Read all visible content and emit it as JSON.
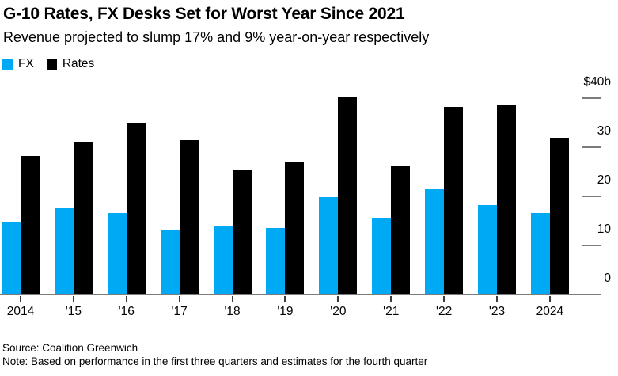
{
  "chart_data": {
    "type": "bar",
    "title": "G-10 Rates, FX Desks Set for Worst Year Since 2021",
    "subtitle": "Revenue projected to slump 17% and 9% year-on-year respectively",
    "categories": [
      "2014",
      "'15",
      "'16",
      "'17",
      "'18",
      "'19",
      "'20",
      "'21",
      "'22",
      "'23",
      "2024"
    ],
    "series": [
      {
        "name": "FX",
        "color": "#00a9f4",
        "values": [
          14.8,
          17.6,
          16.7,
          13.2,
          13.8,
          13.6,
          19.8,
          15.7,
          21.4,
          18.2,
          16.6
        ]
      },
      {
        "name": "Rates",
        "color": "#000000",
        "values": [
          28.2,
          31.1,
          35.0,
          31.5,
          25.4,
          27.0,
          40.3,
          26.1,
          38.3,
          38.5,
          31.9
        ]
      }
    ],
    "xlabel": "",
    "ylabel": "",
    "ylim": [
      0,
      40
    ],
    "unit": "$ billions",
    "grid": false,
    "legend_position": "top-left",
    "y_axis_side": "right",
    "y_ticks": [
      {
        "value": 40,
        "label": "$40b",
        "dash": true
      },
      {
        "value": 30,
        "label": "30",
        "dash": true
      },
      {
        "value": 20,
        "label": "20",
        "dash": true
      },
      {
        "value": 10,
        "label": "10",
        "dash": true
      },
      {
        "value": 0,
        "label": "0",
        "dash": false
      }
    ]
  },
  "footer": {
    "source": "Source: Coalition Greenwich",
    "note": "Note: Based on performance in the first three quarters and estimates for the fourth quarter"
  }
}
